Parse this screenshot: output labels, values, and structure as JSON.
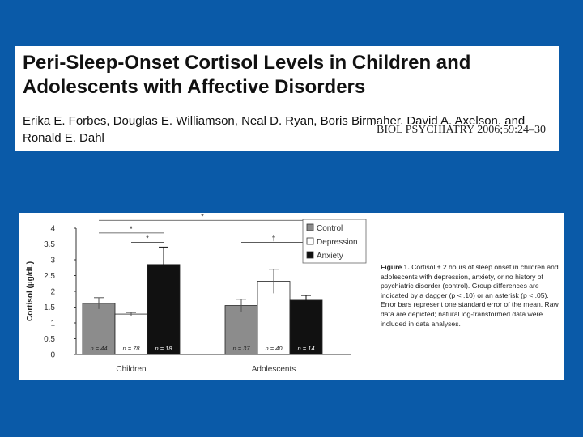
{
  "header": {
    "title_line1": "Peri-Sleep-Onset Cortisol Levels in Children and",
    "title_line2": "Adolescents with Affective Disorders",
    "authors_line1": "Erika E. Forbes, Douglas E. Williamson, Neal D. Ryan, Boris Birmaher, David A. Axelson, and",
    "authors_line2": "Ronald E. Dahl",
    "journal": "BIOL PSYCHIATRY 2006;59:24–30"
  },
  "caption": {
    "label": "Figure 1.",
    "text": "Cortisol ± 2 hours of sleep onset in children and adolescents with depression, anxiety, or no history of psychiatric disorder (control). Group differences are indicated by a dagger (p < .10) or an asterisk (p < .05). Error bars represent one standard error of the mean. Raw data are depicted; natural log-transformed data were included in data analyses."
  },
  "chart_data": {
    "type": "bar",
    "title": "",
    "xlabel": "",
    "ylabel": "Cortisol (µg/dL)",
    "ylim": [
      0,
      4
    ],
    "yticks": [
      0,
      0.5,
      1,
      1.5,
      2,
      2.5,
      3,
      3.5,
      4
    ],
    "ytick_labels": [
      "0",
      "0.5",
      "1",
      "1.5",
      "2",
      "2.5",
      "3",
      "3.5",
      "4"
    ],
    "categories": [
      "Children",
      "Adolescents"
    ],
    "series": [
      {
        "name": "Control",
        "color": "#8c8c8c",
        "values": [
          1.62,
          1.55
        ],
        "errors": [
          0.18,
          0.2
        ],
        "n_labels": [
          "n = 44",
          "n = 37"
        ]
      },
      {
        "name": "Depression",
        "color": "#ffffff",
        "values": [
          1.28,
          2.32
        ],
        "errors": [
          0.05,
          0.38
        ],
        "n_labels": [
          "n = 78",
          "n = 40"
        ]
      },
      {
        "name": "Anxiety",
        "color": "#111111",
        "values": [
          2.85,
          1.72
        ],
        "errors": [
          0.55,
          0.15
        ],
        "n_labels": [
          "n = 18",
          "n = 14"
        ]
      }
    ],
    "significance": [
      {
        "symbol": "*",
        "from": [
          0,
          0
        ],
        "to": [
          1,
          2
        ],
        "level": 4.25
      },
      {
        "symbol": "*",
        "from": [
          0,
          0
        ],
        "to": [
          0,
          2
        ],
        "level": 3.85
      },
      {
        "symbol": "*",
        "from": [
          0,
          1
        ],
        "to": [
          0,
          2
        ],
        "level": 3.55
      },
      {
        "symbol": "†",
        "from": [
          1,
          0
        ],
        "to": [
          1,
          2
        ],
        "level": 3.55
      }
    ],
    "legend_position": "top-right"
  }
}
